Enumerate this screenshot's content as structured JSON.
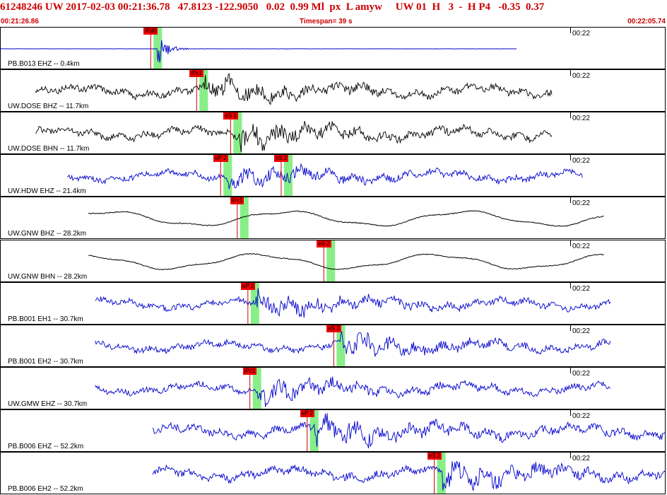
{
  "header": {
    "title": "61248246 UW 2017-02-03 00:21:36.78   47.8123 -122.9050   0.02  0.99 Ml  px  L amyw     UW 01  H   3  -  H P4   -0.35  0.37",
    "start_time": "00:21:26.86",
    "timespan": "Timespan=  39 s",
    "end_time": "00:22:05.74"
  },
  "colors": {
    "header_text": "#cc0000",
    "pick_tag": "#ee0000",
    "pick_line": "#cc0000",
    "pick_window": "#88ee88",
    "trace_blue": "#0000cc",
    "trace_black": "#000000"
  },
  "channels": [
    {
      "label": "PB.B013 EHZ -- 0.4km",
      "time": "00:22",
      "trace_color": "#0000cc",
      "style": "flat",
      "start": 0.0,
      "end": 0.775,
      "amp": 0.4,
      "picks": [
        {
          "tag": "iPd0",
          "pos": 0.236
        }
      ]
    },
    {
      "label": "UW.DOSE BHZ -- 11.7km",
      "time": "00:22",
      "trace_color": "#000000",
      "style": "noisy",
      "start": 0.052,
      "end": 0.828,
      "amp": 0.45,
      "picks": [
        {
          "tag": "iPc1",
          "pos": 0.305
        }
      ]
    },
    {
      "label": "UW.DOSE BHN -- 11.7km",
      "time": "00:22",
      "trace_color": "#000000",
      "style": "noisy",
      "start": 0.052,
      "end": 0.828,
      "amp": 0.45,
      "picks": [
        {
          "tag": "eS 1",
          "pos": 0.356
        }
      ]
    },
    {
      "label": "UW.HDW EHZ -- 21.4km",
      "time": "00:22",
      "trace_color": "#0000cc",
      "style": "noisy",
      "start": 0.1,
      "end": 0.874,
      "amp": 0.4,
      "picks": [
        {
          "tag": "eP 2",
          "pos": 0.341
        },
        {
          "tag": "eS 2",
          "pos": 0.432
        }
      ]
    },
    {
      "label": "UW.GNW BHZ -- 28.2km",
      "time": "00:22",
      "trace_color": "#000000",
      "style": "wave",
      "start": 0.132,
      "end": 0.906,
      "amp": 0.32,
      "picks": [
        {
          "tag": "iPc1",
          "pos": 0.366
        }
      ]
    },
    {
      "label": "UW.GNW BHN -- 28.2km",
      "time": "00:22",
      "trace_color": "#000000",
      "style": "wave",
      "start": 0.132,
      "end": 0.906,
      "amp": 0.32,
      "picks": [
        {
          "tag": "eS 2",
          "pos": 0.496
        }
      ]
    },
    {
      "label": "PB.B001 EH1 -- 30.7km",
      "time": "00:22",
      "trace_color": "#0000cc",
      "style": "noisy",
      "start": 0.142,
      "end": 0.916,
      "amp": 0.4,
      "picks": [
        {
          "tag": "eP 2",
          "pos": 0.382
        }
      ]
    },
    {
      "label": "PB.B001 EH2 -- 30.7km",
      "time": "00:22",
      "trace_color": "#0000cc",
      "style": "noisy",
      "start": 0.142,
      "end": 0.916,
      "amp": 0.4,
      "picks": [
        {
          "tag": "eS 2",
          "pos": 0.511
        }
      ]
    },
    {
      "label": "UW.GMW EHZ -- 30.7km",
      "time": "00:22",
      "trace_color": "#0000cc",
      "style": "noisy",
      "start": 0.142,
      "end": 0.916,
      "amp": 0.4,
      "picks": [
        {
          "tag": "iPc1",
          "pos": 0.385
        }
      ]
    },
    {
      "label": "PB.B006 EHZ -- 52.2km",
      "time": "00:22",
      "trace_color": "#0000cc",
      "style": "noisy",
      "start": 0.228,
      "end": 1.0,
      "amp": 0.5,
      "picks": [
        {
          "tag": "eP 2",
          "pos": 0.471
        }
      ]
    },
    {
      "label": "PB.B006 EH2 -- 52.2km",
      "time": "00:22",
      "trace_color": "#0000cc",
      "style": "noisy",
      "start": 0.228,
      "end": 1.0,
      "amp": 0.5,
      "picks": [
        {
          "tag": "eS 2",
          "pos": 0.662
        }
      ]
    }
  ]
}
